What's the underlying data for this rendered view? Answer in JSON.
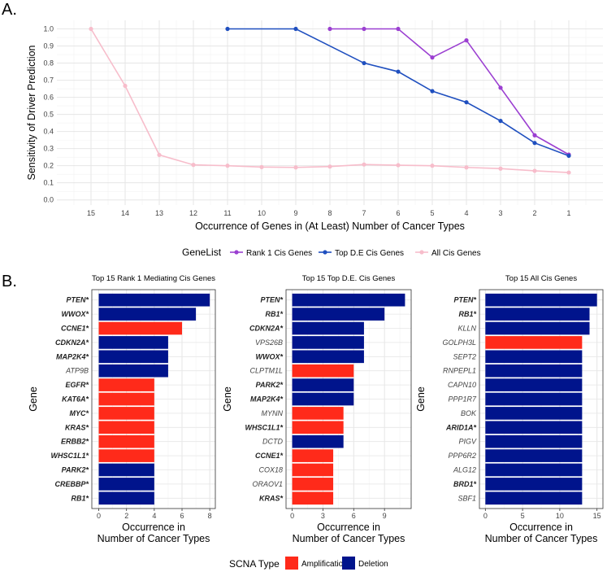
{
  "panel_labels": {
    "a": "A.",
    "b": "B."
  },
  "colors": {
    "rank1": "#9B3FD1",
    "topde": "#1F4FBF",
    "allcis": "#F7BDCB",
    "amplification": "#FF2A1A",
    "deletion": "#00148C",
    "grid": "#E6E6E6",
    "panel_border": "#333333"
  },
  "chart_data": [
    {
      "type": "line",
      "title": "",
      "xlabel": "Occurrence of Genes in (At Least) Number of Cancer Types",
      "ylabel": "Sensitivity of Driver Prediction",
      "x_ticks": [
        "15",
        "14",
        "13",
        "12",
        "11",
        "10",
        "9",
        "8",
        "7",
        "6",
        "5",
        "4",
        "3",
        "2",
        "1"
      ],
      "x_reversed": true,
      "xlim": [
        16,
        0
      ],
      "ylim": [
        -0.03,
        1.05
      ],
      "y_ticks": [
        "0.0",
        "0.1",
        "0.2",
        "0.3",
        "0.4",
        "0.5",
        "0.6",
        "0.7",
        "0.8",
        "0.9",
        "1.0"
      ],
      "legend_title": "GeneList",
      "legend_position": "bottom",
      "series": [
        {
          "name": "Rank 1 Cis Genes",
          "color": "#9B3FD1",
          "x": [
            8,
            7,
            6,
            5,
            4,
            3,
            2,
            1
          ],
          "y": [
            1.0,
            1.0,
            1.0,
            0.833,
            0.933,
            0.656,
            0.378,
            0.265
          ]
        },
        {
          "name": "Top D.E Cis Genes",
          "color": "#1F4FBF",
          "x": [
            11,
            9,
            7,
            6,
            5,
            4,
            3,
            2,
            1
          ],
          "y": [
            1.0,
            1.0,
            0.8,
            0.75,
            0.636,
            0.571,
            0.462,
            0.333,
            0.258
          ]
        },
        {
          "name": "All Cis Genes",
          "color": "#F7BDCB",
          "x": [
            15,
            14,
            13,
            12,
            11,
            10,
            9,
            8,
            7,
            6,
            5,
            4,
            3,
            2,
            1
          ],
          "y": [
            1.0,
            0.667,
            0.263,
            0.205,
            0.2,
            0.192,
            0.19,
            0.195,
            0.207,
            0.203,
            0.2,
            0.19,
            0.183,
            0.17,
            0.16
          ]
        }
      ]
    },
    {
      "type": "bar",
      "orientation": "horizontal",
      "title": "Top 15 Rank 1 Mediating Cis Genes",
      "ylabel": "Gene",
      "xlabel": "Occurrence in\nNumber of Cancer Types",
      "xlim": [
        -0.5,
        8.4
      ],
      "x_ticks": [
        0,
        2,
        4,
        6,
        8
      ],
      "bars": [
        {
          "gene": "PTEN*",
          "value": 8,
          "type": "Deletion",
          "bold": true
        },
        {
          "gene": "WWOX*",
          "value": 7,
          "type": "Deletion",
          "bold": true
        },
        {
          "gene": "CCNE1*",
          "value": 6,
          "type": "Amplification",
          "bold": true
        },
        {
          "gene": "CDKN2A*",
          "value": 5,
          "type": "Deletion",
          "bold": true
        },
        {
          "gene": "MAP2K4*",
          "value": 5,
          "type": "Deletion",
          "bold": true
        },
        {
          "gene": "ATP9B",
          "value": 5,
          "type": "Deletion",
          "bold": false
        },
        {
          "gene": "EGFR*",
          "value": 4,
          "type": "Amplification",
          "bold": true
        },
        {
          "gene": "KAT6A*",
          "value": 4,
          "type": "Amplification",
          "bold": true
        },
        {
          "gene": "MYC*",
          "value": 4,
          "type": "Amplification",
          "bold": true
        },
        {
          "gene": "KRAS*",
          "value": 4,
          "type": "Amplification",
          "bold": true
        },
        {
          "gene": "ERBB2*",
          "value": 4,
          "type": "Amplification",
          "bold": true
        },
        {
          "gene": "WHSC1L1*",
          "value": 4,
          "type": "Amplification",
          "bold": true
        },
        {
          "gene": "PARK2*",
          "value": 4,
          "type": "Deletion",
          "bold": true
        },
        {
          "gene": "CREBBP*",
          "value": 4,
          "type": "Deletion",
          "bold": true
        },
        {
          "gene": "RB1*",
          "value": 4,
          "type": "Deletion",
          "bold": true
        }
      ]
    },
    {
      "type": "bar",
      "orientation": "horizontal",
      "title": "Top 15 Top D.E. Cis Genes",
      "ylabel": "Gene",
      "xlabel": "Occurrence in\nNumber of Cancer Types",
      "xlim": [
        -0.6,
        11.6
      ],
      "x_ticks": [
        0,
        3,
        6,
        9
      ],
      "bars": [
        {
          "gene": "PTEN*",
          "value": 11,
          "type": "Deletion",
          "bold": true
        },
        {
          "gene": "RB1*",
          "value": 9,
          "type": "Deletion",
          "bold": true
        },
        {
          "gene": "CDKN2A*",
          "value": 7,
          "type": "Deletion",
          "bold": true
        },
        {
          "gene": "VPS26B",
          "value": 7,
          "type": "Deletion",
          "bold": false
        },
        {
          "gene": "WWOX*",
          "value": 7,
          "type": "Deletion",
          "bold": true
        },
        {
          "gene": "CLPTM1L",
          "value": 6,
          "type": "Amplification",
          "bold": false
        },
        {
          "gene": "PARK2*",
          "value": 6,
          "type": "Deletion",
          "bold": true
        },
        {
          "gene": "MAP2K4*",
          "value": 6,
          "type": "Deletion",
          "bold": true
        },
        {
          "gene": "MYNN",
          "value": 5,
          "type": "Amplification",
          "bold": false
        },
        {
          "gene": "WHSC1L1*",
          "value": 5,
          "type": "Amplification",
          "bold": true
        },
        {
          "gene": "DCTD",
          "value": 5,
          "type": "Deletion",
          "bold": false
        },
        {
          "gene": "CCNE1*",
          "value": 4,
          "type": "Amplification",
          "bold": true
        },
        {
          "gene": "COX18",
          "value": 4,
          "type": "Amplification",
          "bold": false
        },
        {
          "gene": "ORAOV1",
          "value": 4,
          "type": "Amplification",
          "bold": false
        },
        {
          "gene": "KRAS*",
          "value": 4,
          "type": "Amplification",
          "bold": true
        }
      ]
    },
    {
      "type": "bar",
      "orientation": "horizontal",
      "title": "Top 15 All Cis Genes",
      "ylabel": "Gene",
      "xlabel": "Occurrence in\nNumber of Cancer Types",
      "xlim": [
        -0.8,
        15.8
      ],
      "x_ticks": [
        0,
        5,
        10,
        15
      ],
      "bars": [
        {
          "gene": "PTEN*",
          "value": 15,
          "type": "Deletion",
          "bold": true
        },
        {
          "gene": "RB1*",
          "value": 14,
          "type": "Deletion",
          "bold": true
        },
        {
          "gene": "KLLN",
          "value": 14,
          "type": "Deletion",
          "bold": false
        },
        {
          "gene": "GOLPH3L",
          "value": 13,
          "type": "Amplification",
          "bold": false
        },
        {
          "gene": "SEPT2",
          "value": 13,
          "type": "Deletion",
          "bold": false
        },
        {
          "gene": "RNPEPL1",
          "value": 13,
          "type": "Deletion",
          "bold": false
        },
        {
          "gene": "CAPN10",
          "value": 13,
          "type": "Deletion",
          "bold": false
        },
        {
          "gene": "PPP1R7",
          "value": 13,
          "type": "Deletion",
          "bold": false
        },
        {
          "gene": "BOK",
          "value": 13,
          "type": "Deletion",
          "bold": false
        },
        {
          "gene": "ARID1A*",
          "value": 13,
          "type": "Deletion",
          "bold": true
        },
        {
          "gene": "PIGV",
          "value": 13,
          "type": "Deletion",
          "bold": false
        },
        {
          "gene": "PPP6R2",
          "value": 13,
          "type": "Deletion",
          "bold": false
        },
        {
          "gene": "ALG12",
          "value": 13,
          "type": "Deletion",
          "bold": false
        },
        {
          "gene": "BRD1*",
          "value": 13,
          "type": "Deletion",
          "bold": true
        },
        {
          "gene": "SBF1",
          "value": 13,
          "type": "Deletion",
          "bold": false
        }
      ]
    }
  ],
  "scna_legend": {
    "title": "SCNA Type",
    "items": [
      {
        "label": "Amplification",
        "color": "#FF2A1A"
      },
      {
        "label": "Deletion",
        "color": "#00148C"
      }
    ]
  }
}
